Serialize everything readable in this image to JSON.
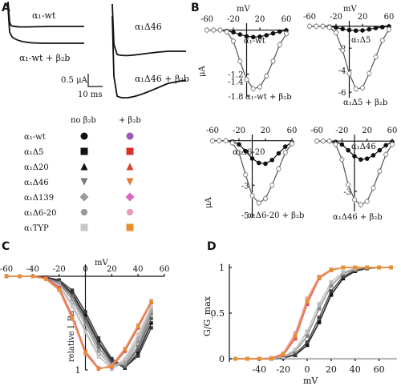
{
  "panels": {
    "A": "A",
    "B": "B",
    "C": "C",
    "D": "D"
  },
  "panelA": {
    "label_left_top": "α₁-wt",
    "label_left_bottom": "α₁-wt + β₂b",
    "label_right_top": "α₁Δ46",
    "label_right_bottom": "α₁Δ46 + β₂b",
    "scale_y": "0.5 μA",
    "scale_x": "10 ms"
  },
  "chart_data": [
    {
      "id": "B1",
      "type": "line",
      "xlabel": "mV",
      "ylabel": "μA",
      "xticks": [
        -60,
        -20,
        20,
        60
      ],
      "yticks": [
        -1.2,
        -1.4,
        -1.8
      ],
      "xlim": [
        -60,
        60
      ],
      "ylim": [
        -1.8,
        0.1
      ],
      "series": [
        {
          "name": "α₁-wt",
          "style": "filled",
          "x": [
            -60,
            -50,
            -40,
            -30,
            -20,
            -10,
            0,
            10,
            20,
            30,
            40,
            50,
            60
          ],
          "y": [
            0,
            0,
            0,
            -0.02,
            -0.06,
            -0.12,
            -0.17,
            -0.19,
            -0.18,
            -0.14,
            -0.09,
            -0.04,
            -0.01
          ]
        },
        {
          "name": "α₁-wt + β₂b",
          "style": "open",
          "x": [
            -60,
            -50,
            -40,
            -30,
            -20,
            -10,
            0,
            10,
            20,
            30,
            40,
            50,
            60
          ],
          "y": [
            0,
            0,
            0,
            -0.05,
            -0.3,
            -0.85,
            -1.35,
            -1.6,
            -1.55,
            -1.25,
            -0.85,
            -0.4,
            -0.1
          ]
        }
      ]
    },
    {
      "id": "B2",
      "type": "line",
      "xlabel": "mV",
      "ylabel": "",
      "xticks": [
        -60,
        -20,
        20,
        60
      ],
      "yticks": [
        -2,
        -4,
        -6
      ],
      "xlim": [
        -60,
        60
      ],
      "ylim": [
        -6.5,
        0.2
      ],
      "series": [
        {
          "name": "α₁Δ5",
          "style": "filled",
          "x": [
            -60,
            -50,
            -40,
            -30,
            -20,
            -10,
            0,
            10,
            20,
            30,
            40,
            50,
            60
          ],
          "y": [
            0,
            0,
            0,
            -0.03,
            -0.12,
            -0.25,
            -0.35,
            -0.4,
            -0.38,
            -0.28,
            -0.17,
            -0.08,
            -0.02
          ]
        },
        {
          "name": "α₁Δ5 + β₂b",
          "style": "open",
          "x": [
            -60,
            -50,
            -40,
            -30,
            -20,
            -10,
            0,
            10,
            20,
            30,
            40,
            50,
            60
          ],
          "y": [
            0,
            0,
            0,
            -0.1,
            -0.6,
            -2.2,
            -4.3,
            -5.7,
            -5.6,
            -4.3,
            -2.8,
            -1.3,
            -0.3
          ]
        }
      ]
    },
    {
      "id": "B3",
      "type": "line",
      "xlabel": "",
      "ylabel": "μA",
      "xticks": [
        -60,
        -20,
        20,
        60
      ],
      "yticks": [
        -3,
        -5
      ],
      "xlim": [
        -60,
        60
      ],
      "ylim": [
        -5.2,
        0.2
      ],
      "series": [
        {
          "name": "α₁Δ6-20",
          "style": "filled",
          "x": [
            -60,
            -50,
            -40,
            -30,
            -20,
            -10,
            0,
            10,
            20,
            30,
            40,
            50,
            60
          ],
          "y": [
            0,
            0,
            0,
            -0.05,
            -0.25,
            -0.7,
            -1.2,
            -1.5,
            -1.55,
            -1.3,
            -0.85,
            -0.4,
            -0.1
          ]
        },
        {
          "name": "α₁Δ6-20 + β₂b",
          "style": "open",
          "x": [
            -60,
            -50,
            -40,
            -30,
            -20,
            -10,
            0,
            10,
            20,
            30,
            40,
            50,
            60
          ],
          "y": [
            0,
            0,
            0,
            -0.15,
            -0.8,
            -2.3,
            -3.7,
            -4.2,
            -3.9,
            -3.0,
            -1.9,
            -0.8,
            -0.2
          ]
        }
      ]
    },
    {
      "id": "B4",
      "type": "line",
      "xlabel": "",
      "ylabel": "",
      "xticks": [
        -60,
        -20,
        20,
        60
      ],
      "yticks": [
        -3
      ],
      "xlim": [
        -60,
        60
      ],
      "ylim": [
        -4.2,
        0.2
      ],
      "series": [
        {
          "name": "α₁Δ46",
          "style": "filled",
          "x": [
            -60,
            -50,
            -40,
            -30,
            -20,
            -10,
            0,
            10,
            20,
            30,
            40,
            50,
            60
          ],
          "y": [
            0,
            0,
            0,
            -0.05,
            -0.2,
            -0.55,
            -0.9,
            -1.1,
            -1.05,
            -0.85,
            -0.55,
            -0.25,
            -0.05
          ]
        },
        {
          "name": "α₁Δ46 + β₂b",
          "style": "open",
          "x": [
            -60,
            -50,
            -40,
            -30,
            -20,
            -10,
            0,
            10,
            20,
            30,
            40,
            50,
            60
          ],
          "y": [
            0,
            0,
            0,
            -0.2,
            -1.1,
            -2.6,
            -3.5,
            -3.8,
            -3.6,
            -2.8,
            -1.8,
            -0.8,
            -0.2
          ]
        }
      ]
    },
    {
      "id": "C",
      "type": "line",
      "xlabel": "mV",
      "ylabel": "relative I_Ba",
      "xticks": [
        -60,
        -40,
        -20,
        0,
        20,
        40,
        60
      ],
      "yticks": [
        0,
        1
      ],
      "ytick_labels": [
        "0",
        "1"
      ],
      "xlim": [
        -60,
        60
      ],
      "ylim": [
        0,
        1
      ],
      "series": [
        {
          "name": "α₁-wt",
          "color": "#111111",
          "x": [
            -60,
            -50,
            -40,
            -30,
            -20,
            -10,
            0,
            10,
            20,
            30,
            40,
            50
          ],
          "y": [
            0,
            0,
            0,
            0.01,
            0.05,
            0.18,
            0.42,
            0.7,
            0.9,
            0.98,
            0.82,
            0.5
          ]
        },
        {
          "name": "α₁Δ5",
          "color": "#333333",
          "x": [
            -60,
            -50,
            -40,
            -30,
            -20,
            -10,
            0,
            10,
            20,
            30,
            40,
            50
          ],
          "y": [
            0,
            0,
            0,
            0.01,
            0.04,
            0.15,
            0.38,
            0.66,
            0.88,
            0.97,
            0.85,
            0.55
          ]
        },
        {
          "name": "α₁Δ20",
          "color": "#555555",
          "x": [
            -60,
            -50,
            -40,
            -30,
            -20,
            -10,
            0,
            10,
            20,
            30,
            40,
            50
          ],
          "y": [
            0,
            0,
            0,
            0.02,
            0.06,
            0.2,
            0.45,
            0.72,
            0.92,
            0.96,
            0.78,
            0.45
          ]
        },
        {
          "name": "α₁Δ46",
          "color": "#777777",
          "x": [
            -60,
            -50,
            -40,
            -30,
            -20,
            -10,
            0,
            10,
            20,
            30,
            40,
            50
          ],
          "y": [
            0,
            0,
            0,
            0.02,
            0.07,
            0.22,
            0.48,
            0.76,
            0.94,
            0.95,
            0.75,
            0.4
          ]
        },
        {
          "name": "α₁Δ139",
          "color": "#999999",
          "x": [
            -60,
            -50,
            -40,
            -30,
            -20,
            -10,
            0,
            10,
            20,
            30,
            40,
            50
          ],
          "y": [
            0,
            0,
            0,
            0.02,
            0.08,
            0.25,
            0.52,
            0.8,
            0.97,
            0.93,
            0.7,
            0.38
          ]
        },
        {
          "name": "α₁Δ6-20",
          "color": "#aaaaaa",
          "x": [
            -60,
            -50,
            -40,
            -30,
            -20,
            -10,
            0,
            10,
            20,
            30,
            40,
            50
          ],
          "y": [
            0,
            0,
            0,
            0.03,
            0.1,
            0.3,
            0.58,
            0.85,
            0.99,
            0.9,
            0.66,
            0.35
          ]
        },
        {
          "name": "α₁TYP",
          "color": "#c8c8c8",
          "x": [
            -60,
            -50,
            -40,
            -30,
            -20,
            -10,
            0,
            10,
            20,
            30,
            40,
            50
          ],
          "y": [
            0,
            0,
            0,
            0.03,
            0.11,
            0.32,
            0.6,
            0.86,
            0.98,
            0.88,
            0.62,
            0.32
          ]
        },
        {
          "name": "+β₂b",
          "color": "#e0505f",
          "x": [
            -60,
            -50,
            -40,
            -30,
            -20,
            -10,
            0,
            10,
            20,
            30,
            40,
            50
          ],
          "y": [
            0,
            0,
            0,
            0.02,
            0.12,
            0.42,
            0.8,
            0.98,
            0.97,
            0.8,
            0.55,
            0.28
          ]
        },
        {
          "name": "+β₂b pink",
          "color": "#e79ab5",
          "x": [
            -60,
            -50,
            -40,
            -30,
            -20,
            -10,
            0,
            10,
            20,
            30,
            40,
            50
          ],
          "y": [
            0,
            0,
            0,
            0.03,
            0.15,
            0.46,
            0.83,
            0.99,
            0.95,
            0.77,
            0.52,
            0.26
          ]
        },
        {
          "name": "+β₂b orange",
          "color": "#e8902f",
          "x": [
            -60,
            -50,
            -40,
            -30,
            -20,
            -10,
            0,
            10,
            20,
            30,
            40,
            50
          ],
          "y": [
            0,
            0,
            0,
            0.03,
            0.14,
            0.44,
            0.82,
            0.99,
            0.96,
            0.78,
            0.53,
            0.27
          ]
        }
      ]
    },
    {
      "id": "D",
      "type": "line",
      "xlabel": "mV",
      "ylabel": "G/G_max",
      "xticks": [
        -40,
        -20,
        0,
        20,
        40,
        60
      ],
      "yticks": [
        0,
        0.5,
        1
      ],
      "ytick_labels": [
        "0",
        "0.5",
        "1"
      ],
      "xlim": [
        -65,
        75
      ],
      "ylim": [
        0,
        1
      ],
      "series": [
        {
          "name": "α₁-wt",
          "color": "#111111",
          "x": [
            -60,
            -50,
            -40,
            -30,
            -20,
            -10,
            0,
            10,
            20,
            30,
            40,
            50,
            60,
            70
          ],
          "y": [
            0,
            0,
            0,
            0,
            0.01,
            0.04,
            0.15,
            0.4,
            0.7,
            0.88,
            0.96,
            0.99,
            1,
            1
          ]
        },
        {
          "name": "α₁Δ5",
          "color": "#444444",
          "x": [
            -60,
            -50,
            -40,
            -30,
            -20,
            -10,
            0,
            10,
            20,
            30,
            40,
            50,
            60,
            70
          ],
          "y": [
            0,
            0,
            0,
            0,
            0.01,
            0.05,
            0.18,
            0.45,
            0.74,
            0.9,
            0.97,
            0.99,
            1,
            1
          ]
        },
        {
          "name": "α₁Δ139",
          "color": "#888888",
          "x": [
            -60,
            -50,
            -40,
            -30,
            -20,
            -10,
            0,
            10,
            20,
            30,
            40,
            50,
            60,
            70
          ],
          "y": [
            0,
            0,
            0,
            0,
            0.02,
            0.08,
            0.25,
            0.55,
            0.8,
            0.93,
            0.98,
            1,
            1,
            1
          ]
        },
        {
          "name": "α₁TYP",
          "color": "#bbbbbb",
          "x": [
            -60,
            -50,
            -40,
            -30,
            -20,
            -10,
            0,
            10,
            20,
            30,
            40,
            50,
            60,
            70
          ],
          "y": [
            0,
            0,
            0,
            0,
            0.02,
            0.1,
            0.3,
            0.6,
            0.84,
            0.95,
            0.99,
            1,
            1,
            1
          ]
        },
        {
          "name": "+β₂b",
          "color": "#e0505f",
          "x": [
            -60,
            -50,
            -40,
            -30,
            -20,
            -10,
            0,
            10,
            20,
            30,
            40,
            50,
            60,
            70
          ],
          "y": [
            0,
            0,
            0,
            0,
            0.04,
            0.22,
            0.6,
            0.88,
            0.97,
            1,
            1,
            1,
            1,
            1
          ]
        },
        {
          "name": "+β₂b pink",
          "color": "#e79ab5",
          "x": [
            -60,
            -50,
            -40,
            -30,
            -20,
            -10,
            0,
            10,
            20,
            30,
            40,
            50,
            60,
            70
          ],
          "y": [
            0,
            0,
            0,
            0.01,
            0.06,
            0.28,
            0.66,
            0.9,
            0.98,
            1,
            1,
            1,
            1,
            1
          ]
        },
        {
          "name": "+β₂b orange",
          "color": "#e8902f",
          "x": [
            -60,
            -50,
            -40,
            -30,
            -20,
            -10,
            0,
            10,
            20,
            30,
            40,
            50,
            60,
            70
          ],
          "y": [
            0,
            0,
            0,
            0,
            0.05,
            0.25,
            0.63,
            0.89,
            0.97,
            1,
            1,
            1,
            1,
            1
          ]
        }
      ]
    }
  ],
  "panelB_labels": {
    "B1_s1": "α₁-wt",
    "B1_s2": "α₁-wt + β₂b",
    "B1_xlabel": "mV",
    "B1_ylabel": "μA",
    "B2_s1": "α₁Δ5",
    "B2_s2": "α₁Δ5 + β₂b",
    "B2_xlabel": "mV",
    "B3_s1": "α₁Δ6-20",
    "B3_s2": "α₁Δ6-20 + β₂b",
    "B3_ylabel": "μA",
    "B4_s1": "α₁Δ46",
    "B4_s2": "α₁Δ46 + β₂b"
  },
  "legend": {
    "header_no": "no β₂b",
    "header_plus": "+ β₂b",
    "rows": [
      {
        "name": "α₁-wt",
        "shape": "circle",
        "no_color": "#111111",
        "plus_color": "#9b59b6"
      },
      {
        "name": "α₁Δ5",
        "shape": "square",
        "no_color": "#111111",
        "plus_color": "#d9302c"
      },
      {
        "name": "α₁Δ20",
        "shape": "triangle-up",
        "no_color": "#111111",
        "plus_color": "#d9402c"
      },
      {
        "name": "α₁Δ46",
        "shape": "triangle-down",
        "no_color": "#777777",
        "plus_color": "#e07a2f"
      },
      {
        "name": "α₁Δ139",
        "shape": "diamond",
        "no_color": "#999999",
        "plus_color": "#d966c0"
      },
      {
        "name": "α₁Δ6-20",
        "shape": "hexagon",
        "no_color": "#999999",
        "plus_color": "#e79ab5"
      },
      {
        "name": "α₁TYP",
        "shape": "square",
        "no_color": "#c8c8c8",
        "plus_color": "#e8902f"
      }
    ]
  }
}
